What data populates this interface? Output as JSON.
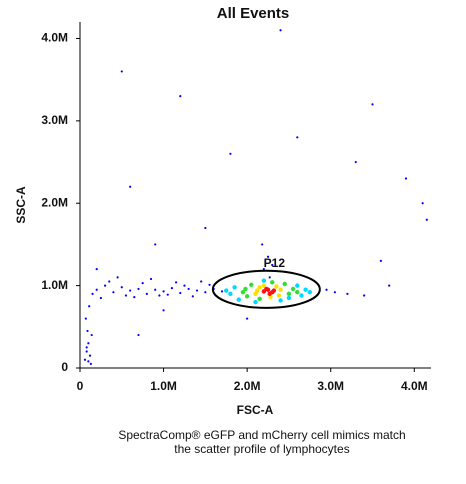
{
  "chart_data": {
    "type": "scatter",
    "title": "All Events",
    "x_label": "FSC-A",
    "y_label": "SSC-A",
    "caption": [
      "SpectraComp® eGFP and mCherry cell mimics match",
      "the scatter profile of lymphocytes"
    ],
    "xlim": [
      0,
      4200000
    ],
    "ylim": [
      0,
      4200000
    ],
    "xticks": [
      0,
      {
        "value": 1000000,
        "label": "1.0M"
      },
      {
        "value": 2000000,
        "label": "2.0M"
      },
      {
        "value": 3000000,
        "label": "3.0M"
      },
      {
        "value": 4000000,
        "label": "4.0M"
      }
    ],
    "yticks": [
      0,
      {
        "value": 1000000,
        "label": "1.0M"
      },
      {
        "value": 2000000,
        "label": "2.0M"
      },
      {
        "value": 3000000,
        "label": "3.0M"
      },
      {
        "value": 4000000,
        "label": "4.0M"
      }
    ],
    "gate": {
      "label": "P12",
      "center": [
        2230000,
        955000
      ],
      "radii": [
        640000,
        225000
      ]
    },
    "series": [
      {
        "color": "#0000ff",
        "x": [
          200000,
          300000,
          400000,
          500000,
          600000,
          700000,
          800000,
          900000,
          1000000,
          1100000,
          1200000,
          1300000,
          1400000,
          1500000,
          1600000,
          1700000,
          350000,
          550000,
          750000,
          950000,
          1150000,
          1350000,
          1550000,
          250000,
          450000,
          650000,
          850000,
          1050000,
          1250000,
          1450000,
          60000,
          80000,
          100000,
          120000,
          90000,
          70000,
          110000,
          150000,
          130000,
          100000,
          80000,
          140000,
          2200000,
          2250000,
          2180000,
          2270000,
          2300000,
          2950000,
          3050000,
          3200000,
          3400000,
          3700000,
          4100000,
          4150000,
          500000,
          1200000,
          1800000,
          2600000,
          3500000,
          600000,
          1500000,
          2400000,
          3300000,
          900000,
          3900000,
          200000,
          1000000,
          2000000,
          3600000,
          700000
        ],
        "y": [
          950000,
          1000000,
          920000,
          980000,
          940000,
          960000,
          900000,
          950000,
          930000,
          970000,
          910000,
          960000,
          940000,
          920000,
          960000,
          930000,
          1050000,
          880000,
          1030000,
          880000,
          1040000,
          870000,
          1010000,
          850000,
          1100000,
          860000,
          1080000,
          890000,
          1000000,
          1050000,
          100000,
          200000,
          300000,
          150000,
          450000,
          600000,
          750000,
          900000,
          50000,
          80000,
          250000,
          400000,
          1200000,
          1350000,
          1500000,
          1100000,
          1250000,
          950000,
          920000,
          900000,
          880000,
          1000000,
          2000000,
          1800000,
          3600000,
          3300000,
          2600000,
          2800000,
          3200000,
          2200000,
          1700000,
          4100000,
          2500000,
          1500000,
          2300000,
          1200000,
          700000,
          600000,
          1300000,
          400000
        ]
      },
      {
        "color": "#00d8ff",
        "x": [
          1800000,
          1850000,
          2650000,
          2700000,
          1900000,
          2750000,
          2200000,
          2400000,
          1750000,
          2600000,
          2100000,
          2500000
        ],
        "y": [
          900000,
          980000,
          880000,
          950000,
          830000,
          920000,
          1060000,
          820000,
          940000,
          1000000,
          800000,
          850000
        ]
      },
      {
        "color": "#30e030",
        "x": [
          1950000,
          2000000,
          2500000,
          2550000,
          2050000,
          2450000,
          2150000,
          2300000,
          2600000,
          1980000
        ],
        "y": [
          920000,
          870000,
          900000,
          960000,
          1010000,
          1020000,
          840000,
          1040000,
          920000,
          960000
        ]
      },
      {
        "color": "#ffe000",
        "x": [
          2100000,
          2150000,
          2400000,
          2380000,
          2200000,
          2350000,
          2120000,
          2280000
        ],
        "y": [
          900000,
          980000,
          950000,
          880000,
          1000000,
          990000,
          940000,
          860000
        ]
      },
      {
        "color": "#ff1010",
        "x": [
          2200000,
          2250000,
          2300000,
          2270000,
          2230000,
          2320000
        ],
        "y": [
          930000,
          950000,
          920000,
          900000,
          960000,
          940000
        ]
      }
    ]
  }
}
